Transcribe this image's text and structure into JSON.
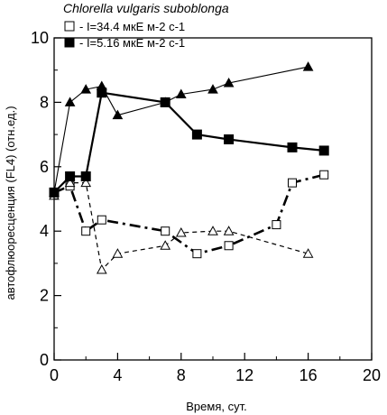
{
  "chart_data": {
    "type": "scatter",
    "title": "Chlorella vulgaris suboblonga",
    "xlabel": "Время, сут.",
    "ylabel": "автофлюоресценция (FL4) (отн.ед.)",
    "xlim": [
      0,
      20
    ],
    "ylim": [
      0,
      10
    ],
    "xticks": [
      "0",
      "4",
      "8",
      "12",
      "16",
      "20"
    ],
    "yticks": [
      "0",
      "2",
      "4",
      "6",
      "8",
      "10"
    ],
    "grid": false,
    "legend_position": "top-left",
    "legend": [
      {
        "label": "- I=34.4 мкЕ м-2 с-1",
        "marker": "open-square"
      },
      {
        "label": "- I=5.16 мкЕ м-2 с-1",
        "marker": "filled-square"
      }
    ],
    "series": [
      {
        "marker": "open-square",
        "line": "dash-dot-thick",
        "x": [
          0,
          1,
          2,
          3,
          7,
          9,
          11,
          14,
          15,
          17
        ],
        "y": [
          5.2,
          5.4,
          4.0,
          4.35,
          4.0,
          3.3,
          3.55,
          4.2,
          5.5,
          5.75
        ]
      },
      {
        "marker": "open-triangle",
        "line": "dashed-thin",
        "x": [
          0,
          1,
          2,
          3,
          4,
          7,
          8,
          10,
          11,
          16
        ],
        "y": [
          5.1,
          5.5,
          5.5,
          2.8,
          3.3,
          3.55,
          3.95,
          4.0,
          4.0,
          3.3
        ]
      },
      {
        "marker": "filled-square",
        "line": "solid-thick",
        "x": [
          0,
          1,
          2,
          3,
          7,
          9,
          11,
          15,
          17
        ],
        "y": [
          5.2,
          5.7,
          5.7,
          8.3,
          8.0,
          7.0,
          6.85,
          6.6,
          6.5
        ]
      },
      {
        "marker": "filled-triangle",
        "line": "solid-thin",
        "x": [
          0,
          1,
          2,
          3,
          4,
          7,
          8,
          10,
          11,
          16
        ],
        "y": [
          5.2,
          8.0,
          8.4,
          8.5,
          7.6,
          8.0,
          8.25,
          8.4,
          8.6,
          9.1
        ]
      }
    ]
  }
}
